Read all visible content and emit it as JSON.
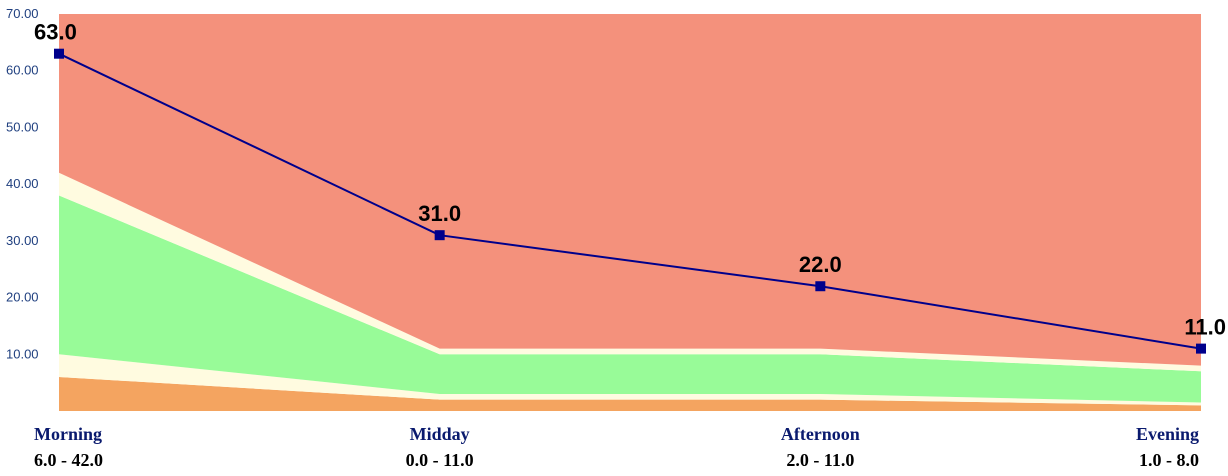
{
  "chart_data": {
    "type": "area",
    "categories": [
      "Morning",
      "Midday",
      "Afternoon",
      "Evening"
    ],
    "category_ranges": [
      "6.0 - 42.0",
      "0.0 - 11.0",
      "2.0 - 11.0",
      "1.0 - 8.0"
    ],
    "ylim": [
      0,
      70
    ],
    "yticks": [
      "10.00",
      "20.00",
      "30.00",
      "40.00",
      "50.00",
      "60.00",
      "70.00"
    ],
    "bands": [
      {
        "color": "#f4a460",
        "lower": [
          0,
          0,
          0,
          0
        ],
        "upper": [
          6,
          2,
          2,
          1
        ]
      },
      {
        "color": "#fffbe0",
        "lower": [
          6,
          2,
          2,
          1
        ],
        "upper": [
          10,
          3,
          3,
          1.5
        ]
      },
      {
        "color": "#98fb98",
        "lower": [
          10,
          3,
          3,
          1.5
        ],
        "upper": [
          38,
          10,
          10,
          7
        ]
      },
      {
        "color": "#fffbe0",
        "lower": [
          38,
          10,
          10,
          7
        ],
        "upper": [
          42,
          11,
          11,
          8
        ]
      },
      {
        "color": "#f4917c",
        "lower": [
          42,
          11,
          11,
          8
        ],
        "upper": [
          70,
          70,
          70,
          70
        ]
      }
    ],
    "series": [
      {
        "values": [
          63.0,
          31.0,
          22.0,
          11.0
        ],
        "color": "#00008b"
      }
    ],
    "data_labels": [
      "63.0",
      "31.0",
      "22.0",
      "11.0"
    ],
    "grid": false,
    "legend": "none"
  }
}
